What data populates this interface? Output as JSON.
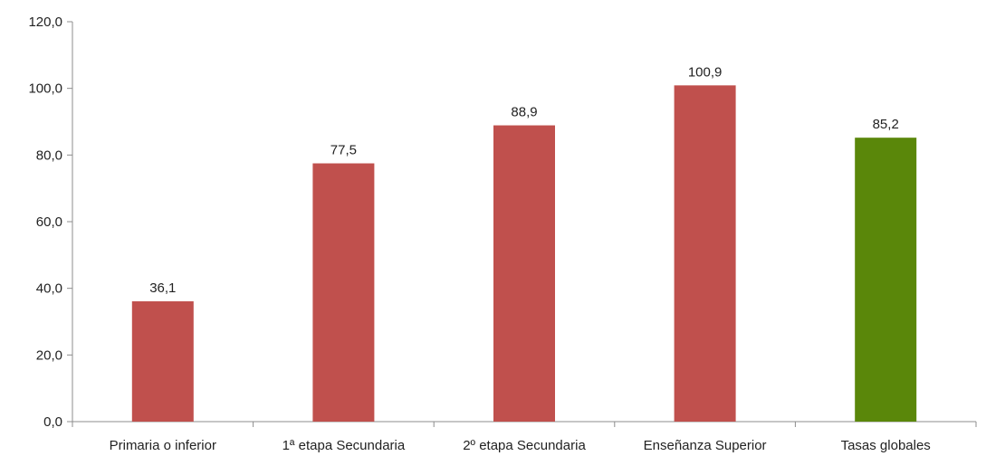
{
  "chart_data": {
    "type": "bar",
    "categories": [
      "Primaria o inferior",
      "1ª etapa Secundaria",
      "2º etapa Secundaria",
      "Enseñanza Superior",
      "Tasas globales"
    ],
    "values": [
      36.1,
      77.5,
      88.9,
      100.9,
      85.2
    ],
    "data_labels": [
      "36,1",
      "77,5",
      "88,9",
      "100,9",
      "85,2"
    ],
    "bar_colors": [
      "#c0504d",
      "#c0504d",
      "#c0504d",
      "#c0504d",
      "#5a870a"
    ],
    "title": "",
    "xlabel": "",
    "ylabel": "",
    "ylim": [
      0,
      120
    ],
    "yticks": [
      0,
      20,
      40,
      60,
      80,
      100,
      120
    ],
    "ytick_labels": [
      "0,0",
      "20,0",
      "40,0",
      "60,0",
      "80,0",
      "100,0",
      "120,0"
    ],
    "grid": false,
    "legend": "none"
  }
}
